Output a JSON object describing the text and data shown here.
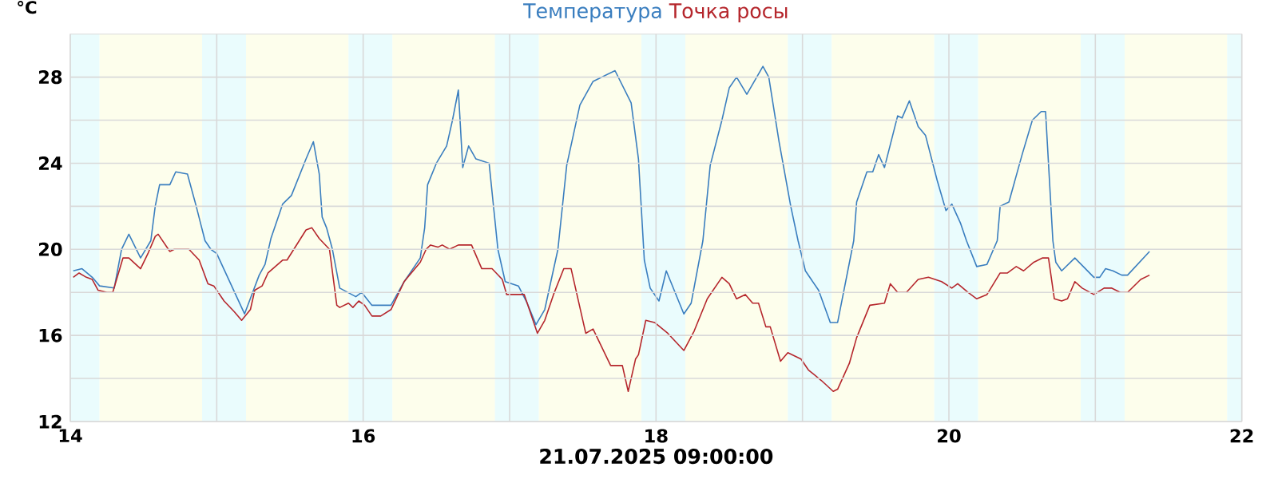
{
  "chart_data": {
    "type": "line",
    "xlabel": "21.07.2025 09:00:00",
    "ylabel": "°C",
    "legend": "top",
    "grid": true,
    "marker": "none",
    "line_style": "solid",
    "xlim": [
      14,
      22
    ],
    "ylim": [
      12,
      30
    ],
    "xticks": [
      14,
      {
        "value": 15,
        "label": null
      },
      16,
      {
        "value": 17,
        "label": null
      },
      18,
      {
        "value": 19,
        "label": null
      },
      20,
      {
        "value": 21,
        "label": null
      },
      22
    ],
    "yticks": [
      12,
      {
        "value": 14,
        "label": null
      },
      16,
      {
        "value": 18,
        "label": null
      },
      20,
      {
        "value": 22,
        "label": null
      },
      24,
      {
        "value": 26,
        "label": null
      },
      28
    ],
    "bands": [
      {
        "axis": "x",
        "from": 14,
        "to": 14.2,
        "color": "#eafcfd"
      },
      {
        "axis": "x",
        "from": 14.2,
        "to": 14.9,
        "color": "#fdfeec"
      },
      {
        "axis": "x",
        "from": 14.9,
        "to": 15.2,
        "color": "#eafcfd"
      },
      {
        "axis": "x",
        "from": 15.2,
        "to": 15.9,
        "color": "#fdfeec"
      },
      {
        "axis": "x",
        "from": 15.9,
        "to": 16.2,
        "color": "#eafcfd"
      },
      {
        "axis": "x",
        "from": 16.2,
        "to": 16.9,
        "color": "#fdfeec"
      },
      {
        "axis": "x",
        "from": 16.9,
        "to": 17.2,
        "color": "#eafcfd"
      },
      {
        "axis": "x",
        "from": 17.2,
        "to": 17.9,
        "color": "#fdfeec"
      },
      {
        "axis": "x",
        "from": 17.9,
        "to": 18.2,
        "color": "#eafcfd"
      },
      {
        "axis": "x",
        "from": 18.2,
        "to": 18.9,
        "color": "#fdfeec"
      },
      {
        "axis": "x",
        "from": 18.9,
        "to": 19.2,
        "color": "#eafcfd"
      },
      {
        "axis": "x",
        "from": 19.2,
        "to": 19.9,
        "color": "#fdfeec"
      },
      {
        "axis": "x",
        "from": 19.9,
        "to": 20.2,
        "color": "#eafcfd"
      },
      {
        "axis": "x",
        "from": 20.2,
        "to": 20.9,
        "color": "#fdfeec"
      },
      {
        "axis": "x",
        "from": 20.9,
        "to": 21.2,
        "color": "#eafcfd"
      },
      {
        "axis": "x",
        "from": 21.2,
        "to": 21.9,
        "color": "#fdfeec"
      },
      {
        "axis": "x",
        "from": 21.9,
        "to": 22,
        "color": "#eafcfd"
      }
    ],
    "series": [
      {
        "name": "Температура",
        "color": "#3a7ebf",
        "x": [
          14.02,
          14.08,
          14.15,
          14.2,
          14.3,
          14.35,
          14.4,
          14.48,
          14.55,
          14.58,
          14.61,
          14.68,
          14.72,
          14.8,
          14.86,
          14.92,
          14.96,
          15.0,
          15.19,
          15.29,
          15.33,
          15.37,
          15.45,
          15.51,
          15.61,
          15.66,
          15.7,
          15.72,
          15.75,
          15.79,
          15.84,
          15.95,
          15.99,
          16.06,
          16.19,
          16.28,
          16.39,
          16.42,
          16.44,
          16.5,
          16.57,
          16.61,
          16.65,
          16.68,
          16.72,
          16.77,
          16.86,
          16.92,
          16.97,
          17.06,
          17.12,
          17.18,
          17.24,
          17.33,
          17.39,
          17.48,
          17.57,
          17.72,
          17.83,
          17.88,
          17.92,
          17.96,
          18.02,
          18.07,
          18.19,
          18.24,
          18.32,
          18.37,
          18.45,
          18.5,
          18.55,
          18.62,
          18.73,
          18.77,
          18.84,
          18.92,
          18.97,
          19.02,
          19.11,
          19.19,
          19.24,
          19.35,
          19.37,
          19.44,
          19.48,
          19.52,
          19.56,
          19.65,
          19.68,
          19.73,
          19.79,
          19.84,
          19.92,
          19.98,
          20.02,
          20.08,
          20.12,
          20.19,
          20.26,
          20.33,
          20.35,
          20.41,
          20.5,
          20.57,
          20.63,
          20.66,
          20.71,
          20.73,
          20.77,
          20.86,
          20.99,
          21.03,
          21.07,
          21.12,
          21.18,
          21.22,
          21.37
        ],
        "values": [
          19.0,
          19.1,
          18.7,
          18.3,
          18.2,
          20.0,
          20.7,
          19.6,
          20.4,
          22.0,
          23.0,
          23.0,
          23.6,
          23.5,
          22.0,
          20.4,
          20.0,
          19.8,
          17.0,
          18.8,
          19.3,
          20.5,
          22.1,
          22.5,
          24.2,
          25.0,
          23.5,
          21.5,
          21.0,
          20.0,
          18.2,
          17.8,
          18.0,
          17.4,
          17.4,
          18.5,
          19.6,
          21.0,
          23.0,
          24.0,
          24.8,
          26.0,
          27.4,
          23.8,
          24.8,
          24.2,
          24.0,
          20.0,
          18.5,
          18.3,
          17.5,
          16.5,
          17.2,
          20.0,
          23.9,
          26.7,
          27.8,
          28.3,
          26.8,
          24.2,
          19.5,
          18.2,
          17.6,
          19.0,
          17.0,
          17.5,
          20.4,
          23.9,
          26.0,
          27.5,
          28.0,
          27.2,
          28.5,
          28.0,
          25.0,
          22.0,
          20.4,
          19.0,
          18.1,
          16.6,
          16.6,
          20.4,
          22.2,
          23.6,
          23.6,
          24.4,
          23.8,
          26.2,
          26.1,
          26.9,
          25.7,
          25.3,
          23.2,
          21.8,
          22.1,
          21.2,
          20.4,
          19.2,
          19.3,
          20.4,
          22.0,
          22.2,
          24.4,
          26.0,
          26.4,
          26.4,
          20.4,
          19.4,
          19.0,
          19.6,
          18.7,
          18.7,
          19.1,
          19.0,
          18.8,
          18.8,
          19.9
        ]
      },
      {
        "name": "Точка росы",
        "color": "#b5262c",
        "x": [
          14.02,
          14.06,
          14.11,
          14.15,
          14.19,
          14.25,
          14.29,
          14.36,
          14.4,
          14.48,
          14.53,
          14.58,
          14.6,
          14.68,
          14.71,
          14.81,
          14.88,
          14.94,
          14.98,
          15.05,
          15.12,
          15.17,
          15.23,
          15.26,
          15.31,
          15.35,
          15.45,
          15.48,
          15.61,
          15.65,
          15.7,
          15.77,
          15.82,
          15.84,
          15.9,
          15.93,
          15.97,
          16.01,
          16.06,
          16.12,
          16.19,
          16.28,
          16.39,
          16.43,
          16.46,
          16.51,
          16.54,
          16.59,
          16.65,
          16.74,
          16.81,
          16.88,
          16.95,
          16.98,
          17.1,
          17.19,
          17.24,
          17.3,
          17.37,
          17.42,
          17.52,
          17.57,
          17.69,
          17.77,
          17.81,
          17.86,
          17.88,
          17.93,
          17.99,
          18.08,
          18.19,
          18.26,
          18.35,
          18.45,
          18.5,
          18.55,
          18.61,
          18.66,
          18.7,
          18.75,
          18.78,
          18.85,
          18.9,
          18.99,
          19.04,
          19.13,
          19.21,
          19.24,
          19.32,
          19.37,
          19.46,
          19.56,
          19.6,
          19.65,
          19.71,
          19.79,
          19.86,
          19.95,
          20.02,
          20.06,
          20.13,
          20.19,
          20.26,
          20.35,
          20.4,
          20.46,
          20.51,
          20.58,
          20.64,
          20.68,
          20.72,
          20.77,
          20.81,
          20.86,
          20.91,
          20.99,
          21.06,
          21.11,
          21.17,
          21.22,
          21.31,
          21.37
        ],
        "values": [
          18.7,
          18.9,
          18.7,
          18.6,
          18.1,
          18.0,
          18.0,
          19.6,
          19.6,
          19.1,
          19.8,
          20.6,
          20.7,
          19.9,
          20.0,
          20.0,
          19.5,
          18.4,
          18.3,
          17.6,
          17.1,
          16.7,
          17.2,
          18.1,
          18.3,
          18.9,
          19.5,
          19.5,
          20.9,
          21.0,
          20.5,
          20.0,
          17.4,
          17.3,
          17.5,
          17.3,
          17.6,
          17.4,
          16.9,
          16.9,
          17.2,
          18.5,
          19.4,
          20.0,
          20.2,
          20.1,
          20.2,
          20.0,
          20.2,
          20.2,
          19.1,
          19.1,
          18.6,
          17.9,
          17.9,
          16.1,
          16.7,
          17.9,
          19.1,
          19.1,
          16.1,
          16.3,
          14.6,
          14.6,
          13.4,
          14.9,
          15.1,
          16.7,
          16.6,
          16.1,
          15.3,
          16.2,
          17.7,
          18.7,
          18.4,
          17.7,
          17.9,
          17.5,
          17.5,
          16.4,
          16.4,
          14.8,
          15.2,
          14.9,
          14.4,
          13.9,
          13.4,
          13.5,
          14.7,
          15.9,
          17.4,
          17.5,
          18.4,
          18.0,
          18.0,
          18.6,
          18.7,
          18.5,
          18.2,
          18.4,
          18.0,
          17.7,
          17.9,
          18.9,
          18.9,
          19.2,
          19.0,
          19.4,
          19.6,
          19.6,
          17.7,
          17.6,
          17.7,
          18.5,
          18.2,
          17.9,
          18.2,
          18.2,
          18.0,
          18.0,
          18.6,
          18.8
        ]
      }
    ]
  }
}
